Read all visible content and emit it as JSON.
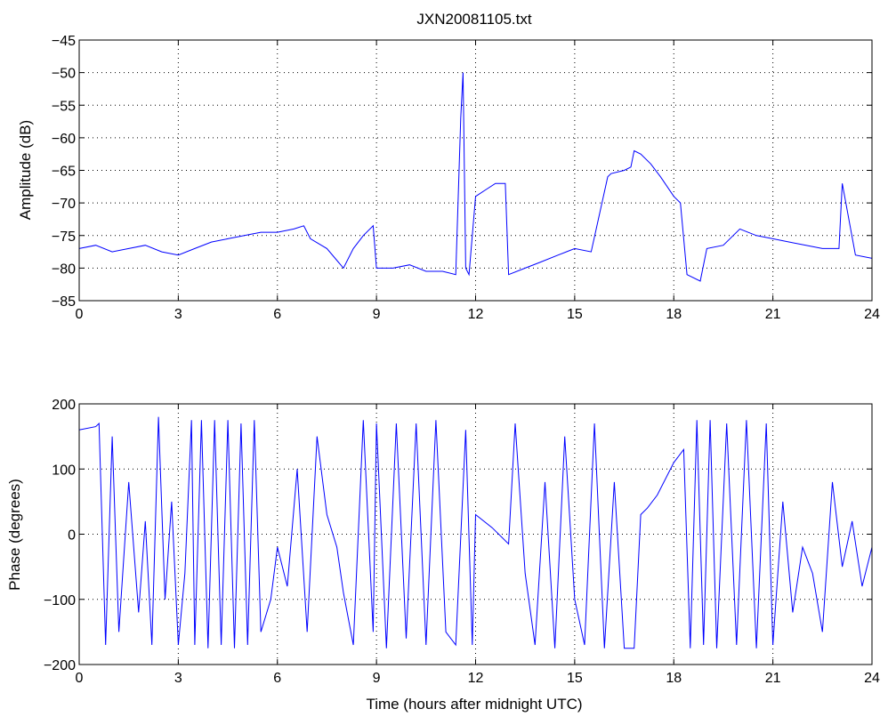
{
  "chart_data": [
    {
      "type": "line",
      "title": "JXN20081105.txt",
      "xlabel": "",
      "ylabel": "Amplitude (dB)",
      "xlim": [
        0,
        24
      ],
      "ylim": [
        -85,
        -45
      ],
      "xticks": [
        0,
        3,
        6,
        9,
        12,
        15,
        18,
        21,
        24
      ],
      "yticks": [
        -85,
        -80,
        -75,
        -70,
        -65,
        -60,
        -55,
        -50,
        -45
      ],
      "xtick_labels": [
        "0",
        "3",
        "6",
        "9",
        "12",
        "15",
        "18",
        "21",
        "24"
      ],
      "ytick_labels": [
        "−85",
        "−80",
        "−75",
        "−70",
        "−65",
        "−60",
        "−55",
        "−50",
        "−45"
      ],
      "grid": true,
      "color": "#0000ff",
      "series": [
        {
          "x": [
            0,
            0.5,
            1,
            1.5,
            2,
            2.5,
            3,
            3.5,
            4,
            4.5,
            5,
            5.5,
            6,
            6.5,
            6.8,
            7,
            7.5,
            8,
            8.3,
            8.6,
            8.9,
            9.0,
            9.5,
            10,
            10.5,
            11,
            11.4,
            11.55,
            11.62,
            11.7,
            11.8,
            12.0,
            12.3,
            12.6,
            12.9,
            13.0,
            13.5,
            14,
            14.5,
            15,
            15.5,
            16.0,
            16.1,
            16.5,
            16.7,
            16.8,
            17.0,
            17.3,
            17.6,
            18.0,
            18.2,
            18.4,
            18.8,
            19.0,
            19.5,
            20.0,
            20.5,
            21,
            21.5,
            22,
            22.5,
            23,
            23.1,
            23.5,
            24
          ],
          "y": [
            -77,
            -76.5,
            -77.5,
            -77,
            -76.5,
            -77.5,
            -78,
            -77,
            -76,
            -75.5,
            -75,
            -74.5,
            -74.5,
            -74,
            -73.5,
            -75.5,
            -77,
            -80,
            -77,
            -75,
            -73.5,
            -80,
            -80,
            -79.5,
            -80.5,
            -80.5,
            -81,
            -57,
            -50,
            -80,
            -81,
            -69,
            -68,
            -67,
            -67,
            -81,
            -80,
            -79,
            -78,
            -77,
            -77.5,
            -66,
            -65.5,
            -65,
            -64.5,
            -62,
            -62.5,
            -64,
            -66,
            -69,
            -70,
            -81,
            -82,
            -77,
            -76.5,
            -74,
            -75,
            -75.5,
            -76,
            -76.5,
            -77,
            -77,
            -67,
            -78,
            -78.5
          ]
        }
      ]
    },
    {
      "type": "line",
      "title": "",
      "xlabel": "Time (hours after midnight UTC)",
      "ylabel": "Phase (degrees)",
      "xlim": [
        0,
        24
      ],
      "ylim": [
        -200,
        200
      ],
      "xticks": [
        0,
        3,
        6,
        9,
        12,
        15,
        18,
        21,
        24
      ],
      "yticks": [
        -200,
        -100,
        0,
        100,
        200
      ],
      "xtick_labels": [
        "0",
        "3",
        "6",
        "9",
        "12",
        "15",
        "18",
        "21",
        "24"
      ],
      "ytick_labels": [
        "−200",
        "−100",
        "0",
        "100",
        "200"
      ],
      "grid": true,
      "color": "#0000ff",
      "series": [
        {
          "x": [
            0,
            0.5,
            0.6,
            0.8,
            1.0,
            1.2,
            1.5,
            1.8,
            2.0,
            2.2,
            2.4,
            2.6,
            2.8,
            3.0,
            3.2,
            3.4,
            3.5,
            3.7,
            3.9,
            4.1,
            4.3,
            4.5,
            4.7,
            4.9,
            5.1,
            5.3,
            5.5,
            5.8,
            6.0,
            6.3,
            6.6,
            6.9,
            7.2,
            7.5,
            7.8,
            8.0,
            8.3,
            8.6,
            8.9,
            9.0,
            9.3,
            9.6,
            9.9,
            10.2,
            10.5,
            10.8,
            11.1,
            11.4,
            11.7,
            11.9,
            12.0,
            12.5,
            13.0,
            13.2,
            13.5,
            13.8,
            14.1,
            14.4,
            14.7,
            15.0,
            15.3,
            15.6,
            15.9,
            16.2,
            16.5,
            16.8,
            17.0,
            17.2,
            17.5,
            18.0,
            18.3,
            18.5,
            18.7,
            18.9,
            19.1,
            19.3,
            19.6,
            19.9,
            20.2,
            20.5,
            20.8,
            21.0,
            21.3,
            21.6,
            21.9,
            22.2,
            22.5,
            22.8,
            23.1,
            23.4,
            23.7,
            24.0
          ],
          "y": [
            160,
            165,
            170,
            -170,
            150,
            -150,
            80,
            -120,
            20,
            -170,
            180,
            -100,
            50,
            -170,
            -60,
            175,
            -170,
            175,
            -175,
            175,
            -170,
            175,
            -175,
            170,
            -170,
            175,
            -150,
            -100,
            -20,
            -80,
            100,
            -150,
            150,
            30,
            -20,
            -90,
            -170,
            175,
            -150,
            170,
            -175,
            170,
            -160,
            170,
            -170,
            175,
            -150,
            -170,
            160,
            -170,
            30,
            10,
            -15,
            170,
            -60,
            -170,
            80,
            -175,
            150,
            -100,
            -170,
            170,
            -175,
            80,
            -175,
            -175,
            30,
            40,
            60,
            110,
            130,
            -175,
            175,
            -170,
            175,
            -175,
            170,
            -170,
            175,
            -175,
            170,
            -170,
            50,
            -120,
            -20,
            -60,
            -150,
            80,
            -50,
            20,
            -80,
            -20
          ]
        }
      ]
    }
  ]
}
